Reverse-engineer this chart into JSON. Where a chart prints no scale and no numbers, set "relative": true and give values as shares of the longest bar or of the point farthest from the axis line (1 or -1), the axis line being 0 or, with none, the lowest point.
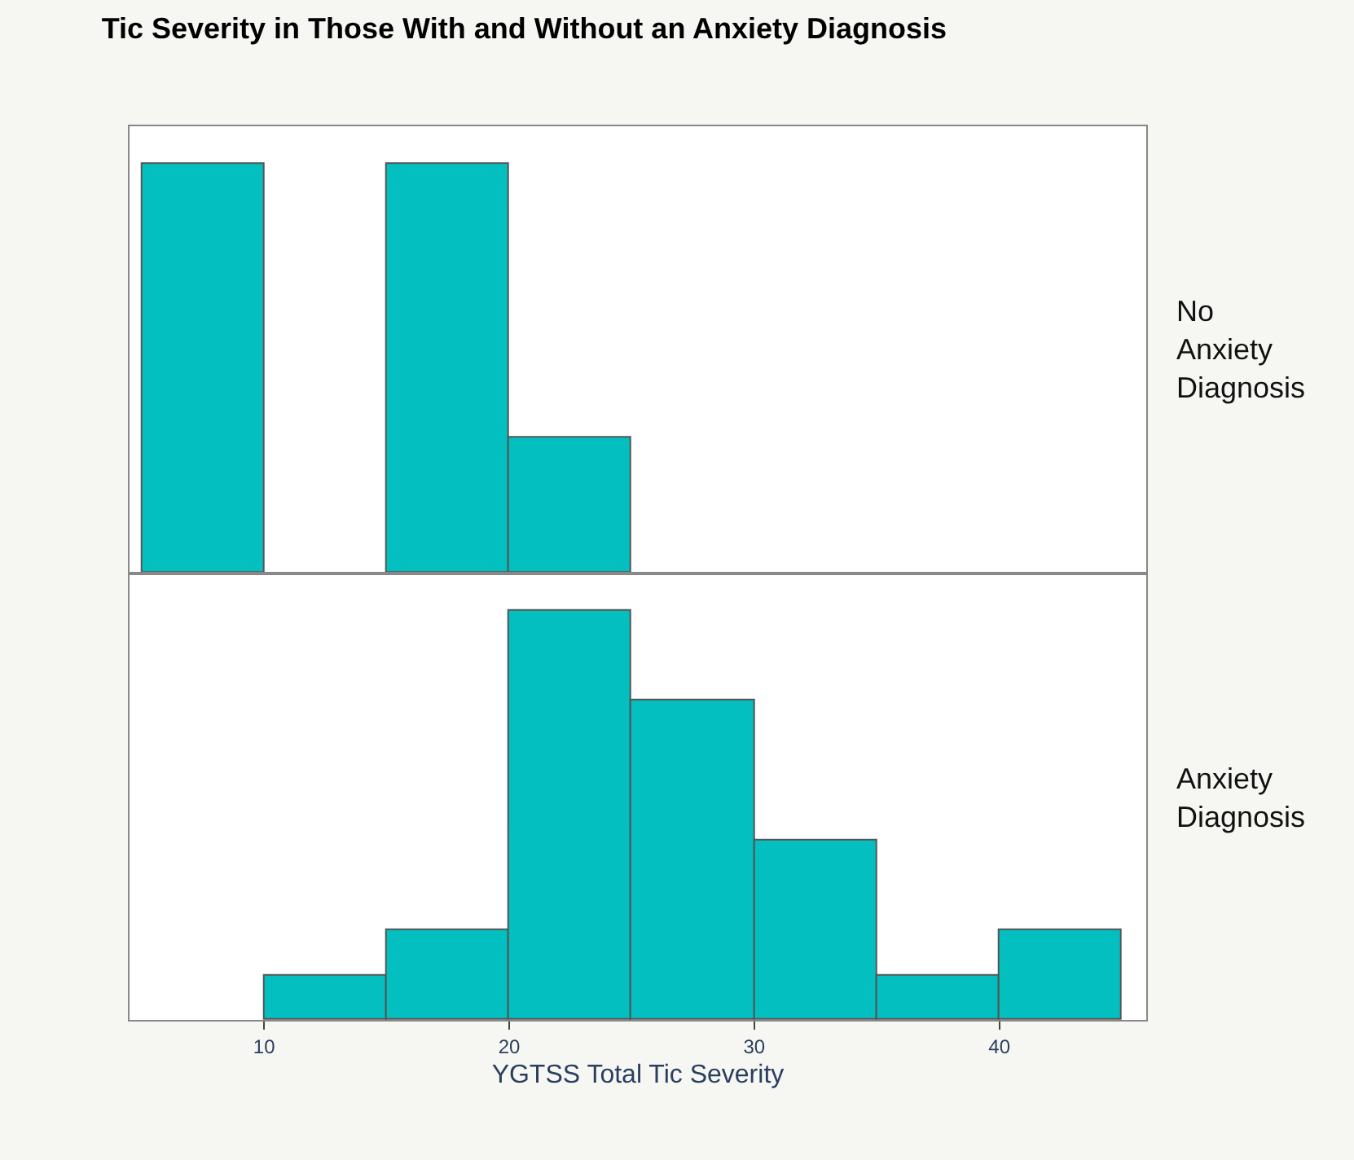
{
  "chart_data": [
    {
      "type": "bar",
      "title": "Tic Severity in Those With and Without an Anxiety Diagnosis",
      "relative": true,
      "x": [
        7.5,
        17.5,
        22.5
      ],
      "values": [
        1,
        1,
        0.33
      ],
      "color": "#04bfbf",
      "xlim": [
        4.5,
        46
      ],
      "xticks": [
        10,
        20,
        30,
        40
      ],
      "tick_labels": false,
      "annotations": [
        "No\nAnxiety\nDiagnosis"
      ]
    },
    {
      "type": "bar",
      "xlabel": "YGTSS Total Tic Severity",
      "relative": true,
      "x": [
        12.5,
        17.5,
        22.5,
        27.5,
        32.5,
        37.5,
        42.5
      ],
      "values": [
        0.11,
        0.22,
        1,
        0.78,
        0.44,
        0.11,
        0.22
      ],
      "color": "#04bfbf",
      "xlim": [
        4.5,
        46
      ],
      "xticks": [
        10,
        20,
        30,
        40
      ],
      "tick_labels": "x",
      "annotations": [
        "Anxiety\nDiagnosis"
      ]
    }
  ]
}
